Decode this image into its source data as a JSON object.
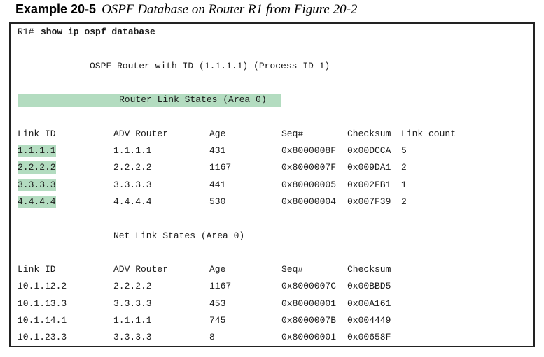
{
  "caption": {
    "example": "Example 20-5",
    "title": "OSPF Database on Router R1 from Figure 20-2"
  },
  "terminal": {
    "prompt": "R1#",
    "command": "show ip ospf database",
    "banner": "OSPF Router with ID (1.1.1.1) (Process ID 1)",
    "highlight_color": "#b3dcc0",
    "router_section": {
      "heading": "Router Link States (Area 0)",
      "columns": [
        "Link ID",
        "ADV Router",
        "Age",
        "Seq#",
        "Checksum",
        "Link count"
      ],
      "rows": [
        [
          "1.1.1.1",
          "1.1.1.1",
          "431",
          "0x8000008F",
          "0x00DCCA",
          "5"
        ],
        [
          "2.2.2.2",
          "2.2.2.2",
          "1167",
          "0x8000007F",
          "0x009DA1",
          "2"
        ],
        [
          "3.3.3.3",
          "3.3.3.3",
          "441",
          "0x80000005",
          "0x002FB1",
          "1"
        ],
        [
          "4.4.4.4",
          "4.4.4.4",
          "530",
          "0x80000004",
          "0x007F39",
          "2"
        ]
      ]
    },
    "net_section": {
      "heading": "Net Link States (Area 0)",
      "columns": [
        "Link ID",
        "ADV Router",
        "Age",
        "Seq#",
        "Checksum"
      ],
      "rows": [
        [
          "10.1.12.2",
          "2.2.2.2",
          "1167",
          "0x8000007C",
          "0x00BBD5"
        ],
        [
          "10.1.13.3",
          "3.3.3.3",
          "453",
          "0x80000001",
          "0x00A161"
        ],
        [
          "10.1.14.1",
          "1.1.1.1",
          "745",
          "0x8000007B",
          "0x004449"
        ],
        [
          "10.1.23.3",
          "3.3.3.3",
          "8",
          "0x80000001",
          "0x00658F"
        ]
      ]
    }
  }
}
